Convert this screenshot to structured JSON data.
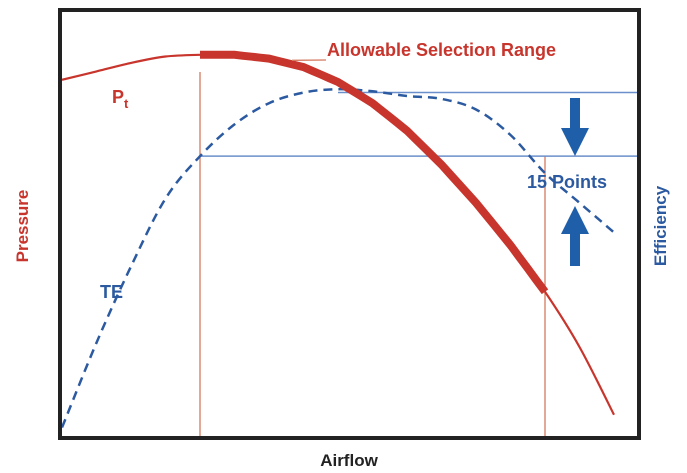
{
  "chart_data": {
    "type": "line",
    "title": "",
    "xlabel": "Airflow",
    "ylabel": "Pressure",
    "y2label": "Efficiency",
    "xlim": [
      0,
      100
    ],
    "ylim": [
      0,
      100
    ],
    "y2lim": [
      0,
      100
    ],
    "grid": false,
    "legend": "none",
    "colors": {
      "pressure": "#c8352d",
      "efficiency": "#2c5aa0",
      "arrow": "#1f5ea8",
      "frame": "#222222"
    },
    "series": [
      {
        "name": "Pt",
        "name_main": "P",
        "name_sub": "t",
        "axis": "left",
        "style": "solid",
        "x": [
          0,
          6,
          12,
          18,
          24,
          30,
          36,
          42,
          48,
          54,
          60,
          66,
          72,
          78,
          84,
          90,
          96
        ],
        "y": [
          84,
          86,
          88,
          89.5,
          89.9,
          89.9,
          89,
          87,
          83.5,
          78.5,
          72,
          64,
          55,
          45,
          34,
          21,
          5
        ]
      },
      {
        "name": "TE",
        "axis": "right",
        "style": "dashed",
        "x": [
          0,
          6,
          12,
          18,
          24,
          30,
          36,
          42,
          48,
          54,
          60,
          66,
          72,
          78,
          84,
          90,
          96
        ],
        "y": [
          2,
          22,
          40,
          56,
          66,
          73.5,
          78.5,
          81,
          81.8,
          81.3,
          80.2,
          79.5,
          77,
          71,
          62,
          55,
          48
        ]
      }
    ],
    "selection_range": {
      "label": "Allowable Selection Range",
      "x_start": 24,
      "x_end": 84
    },
    "efficiency_band": {
      "label": "15 Points",
      "upper": 81,
      "lower": 66
    }
  }
}
